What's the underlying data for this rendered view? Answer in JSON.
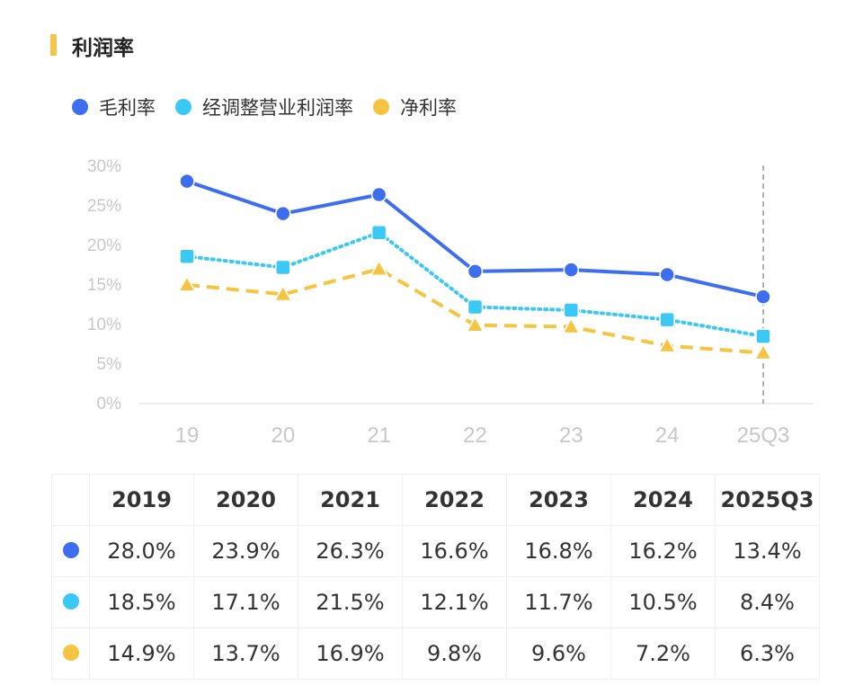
{
  "title": "利润率",
  "legend": [
    {
      "label": "毛利率",
      "color": "#3d6ef0"
    },
    {
      "label": "经调整营业利润率",
      "color": "#3cc8f5"
    },
    {
      "label": "净利率",
      "color": "#f5c542"
    }
  ],
  "chart_data": {
    "type": "line",
    "categories": [
      "19",
      "20",
      "21",
      "22",
      "23",
      "24",
      "25Q3"
    ],
    "ylim": [
      0,
      30
    ],
    "yticks": [
      "0%",
      "5%",
      "10%",
      "15%",
      "20%",
      "25%",
      "30%"
    ],
    "series": [
      {
        "name": "毛利率",
        "values": [
          28.0,
          23.9,
          26.3,
          16.6,
          16.8,
          16.2,
          13.4
        ],
        "color": "#3d6ef0",
        "style": "solid",
        "marker": "circle"
      },
      {
        "name": "经调整营业利润率",
        "values": [
          18.5,
          17.1,
          21.5,
          12.1,
          11.7,
          10.5,
          8.4
        ],
        "color": "#3cc8f5",
        "style": "dotted",
        "marker": "square"
      },
      {
        "name": "净利率",
        "values": [
          14.9,
          13.7,
          16.9,
          9.8,
          9.6,
          7.2,
          6.3
        ],
        "color": "#f5c542",
        "style": "dashed",
        "marker": "triangle"
      }
    ],
    "grid": false
  },
  "table": {
    "headers": [
      "2019",
      "2020",
      "2021",
      "2022",
      "2023",
      "2024",
      "2025Q3"
    ],
    "rows": [
      [
        "28.0%",
        "23.9%",
        "26.3%",
        "16.6%",
        "16.8%",
        "16.2%",
        "13.4%"
      ],
      [
        "18.5%",
        "17.1%",
        "21.5%",
        "12.1%",
        "11.7%",
        "10.5%",
        "8.4%"
      ],
      [
        "14.9%",
        "13.7%",
        "16.9%",
        "9.8%",
        "9.6%",
        "7.2%",
        "6.3%"
      ]
    ]
  }
}
